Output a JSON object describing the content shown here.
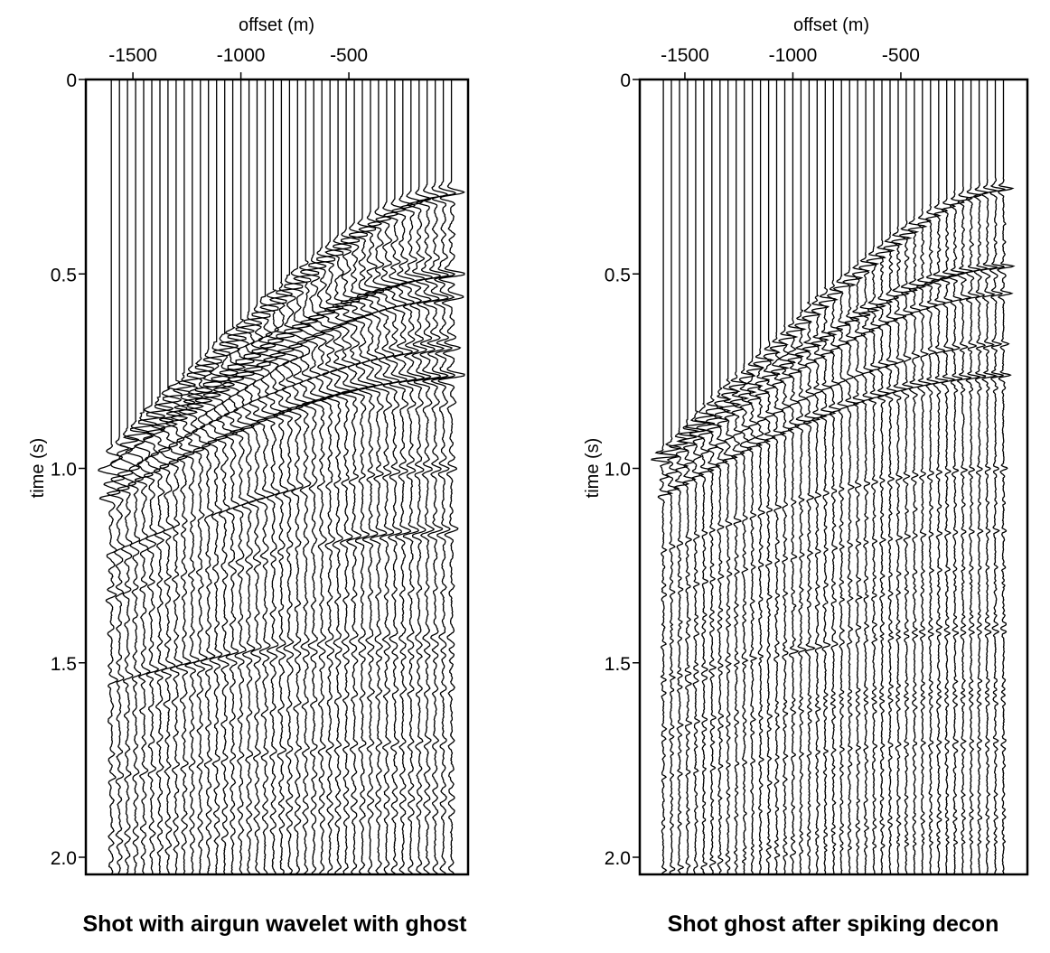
{
  "chart_data": [
    {
      "type": "line",
      "subtype": "seismic-wiggle",
      "title": "Shot with airgun wavelet with ghost",
      "xlabel": "offset (m)",
      "ylabel": "time (s)",
      "xticks": [
        -1500,
        -1000,
        -500
      ],
      "xtick_labels": [
        "-1500",
        "-1000",
        "-500"
      ],
      "yticks": [
        0,
        0.5,
        1.0,
        1.5,
        2.0
      ],
      "ytick_labels": [
        "0",
        "0.5",
        "1.0",
        "1.5",
        "2.0"
      ],
      "xlim": [
        -1718,
        52
      ],
      "ylim": [
        0,
        2.042
      ],
      "trace_offsets": {
        "first": -1600,
        "spacing": 37.5,
        "count": 43
      },
      "wavelet": "airgun-ghost",
      "events": [
        {
          "t0": 0.29,
          "velocity": 1730,
          "amplitude": 1.0
        },
        {
          "t0": 0.5,
          "velocity": 1900,
          "amplitude": 1.0
        },
        {
          "t0": 0.56,
          "velocity": 1960,
          "amplitude": 0.7
        },
        {
          "t0": 0.69,
          "velocity": 2100,
          "amplitude": 0.55
        },
        {
          "t0": 0.76,
          "velocity": 2150,
          "amplitude": 0.8
        },
        {
          "t0": 1.0,
          "velocity": 2350,
          "amplitude": 0.35
        },
        {
          "t0": 1.16,
          "velocity": 2500,
          "amplitude": 0.3
        },
        {
          "t0": 1.42,
          "velocity": 2650,
          "amplitude": 0.3
        },
        {
          "t0": 1.7,
          "velocity": 2800,
          "amplitude": 0.25
        }
      ]
    },
    {
      "type": "line",
      "subtype": "seismic-wiggle",
      "title": "Shot ghost after spiking decon",
      "xlabel": "offset (m)",
      "ylabel": "time (s)",
      "xticks": [
        -1500,
        -1000,
        -500
      ],
      "xtick_labels": [
        "-1500",
        "-1000",
        "-500"
      ],
      "yticks": [
        0,
        0.5,
        1.0,
        1.5,
        2.0
      ],
      "ytick_labels": [
        "0",
        "0.5",
        "1.0",
        "1.5",
        "2.0"
      ],
      "xlim": [
        -1709,
        86
      ],
      "ylim": [
        0,
        2.042
      ],
      "trace_offsets": {
        "first": -1600,
        "spacing": 37.5,
        "count": 43
      },
      "wavelet": "spike",
      "events": [
        {
          "t0": 0.28,
          "velocity": 1730,
          "amplitude": 1.0
        },
        {
          "t0": 0.48,
          "velocity": 1900,
          "amplitude": 1.0
        },
        {
          "t0": 0.55,
          "velocity": 1960,
          "amplitude": 0.7
        },
        {
          "t0": 0.68,
          "velocity": 2100,
          "amplitude": 0.55
        },
        {
          "t0": 0.76,
          "velocity": 2150,
          "amplitude": 0.8
        },
        {
          "t0": 1.0,
          "velocity": 2350,
          "amplitude": 0.35
        },
        {
          "t0": 1.16,
          "velocity": 2500,
          "amplitude": 0.3
        },
        {
          "t0": 1.42,
          "velocity": 2650,
          "amplitude": 0.3
        },
        {
          "t0": 1.7,
          "velocity": 2800,
          "amplitude": 0.25
        }
      ]
    }
  ]
}
